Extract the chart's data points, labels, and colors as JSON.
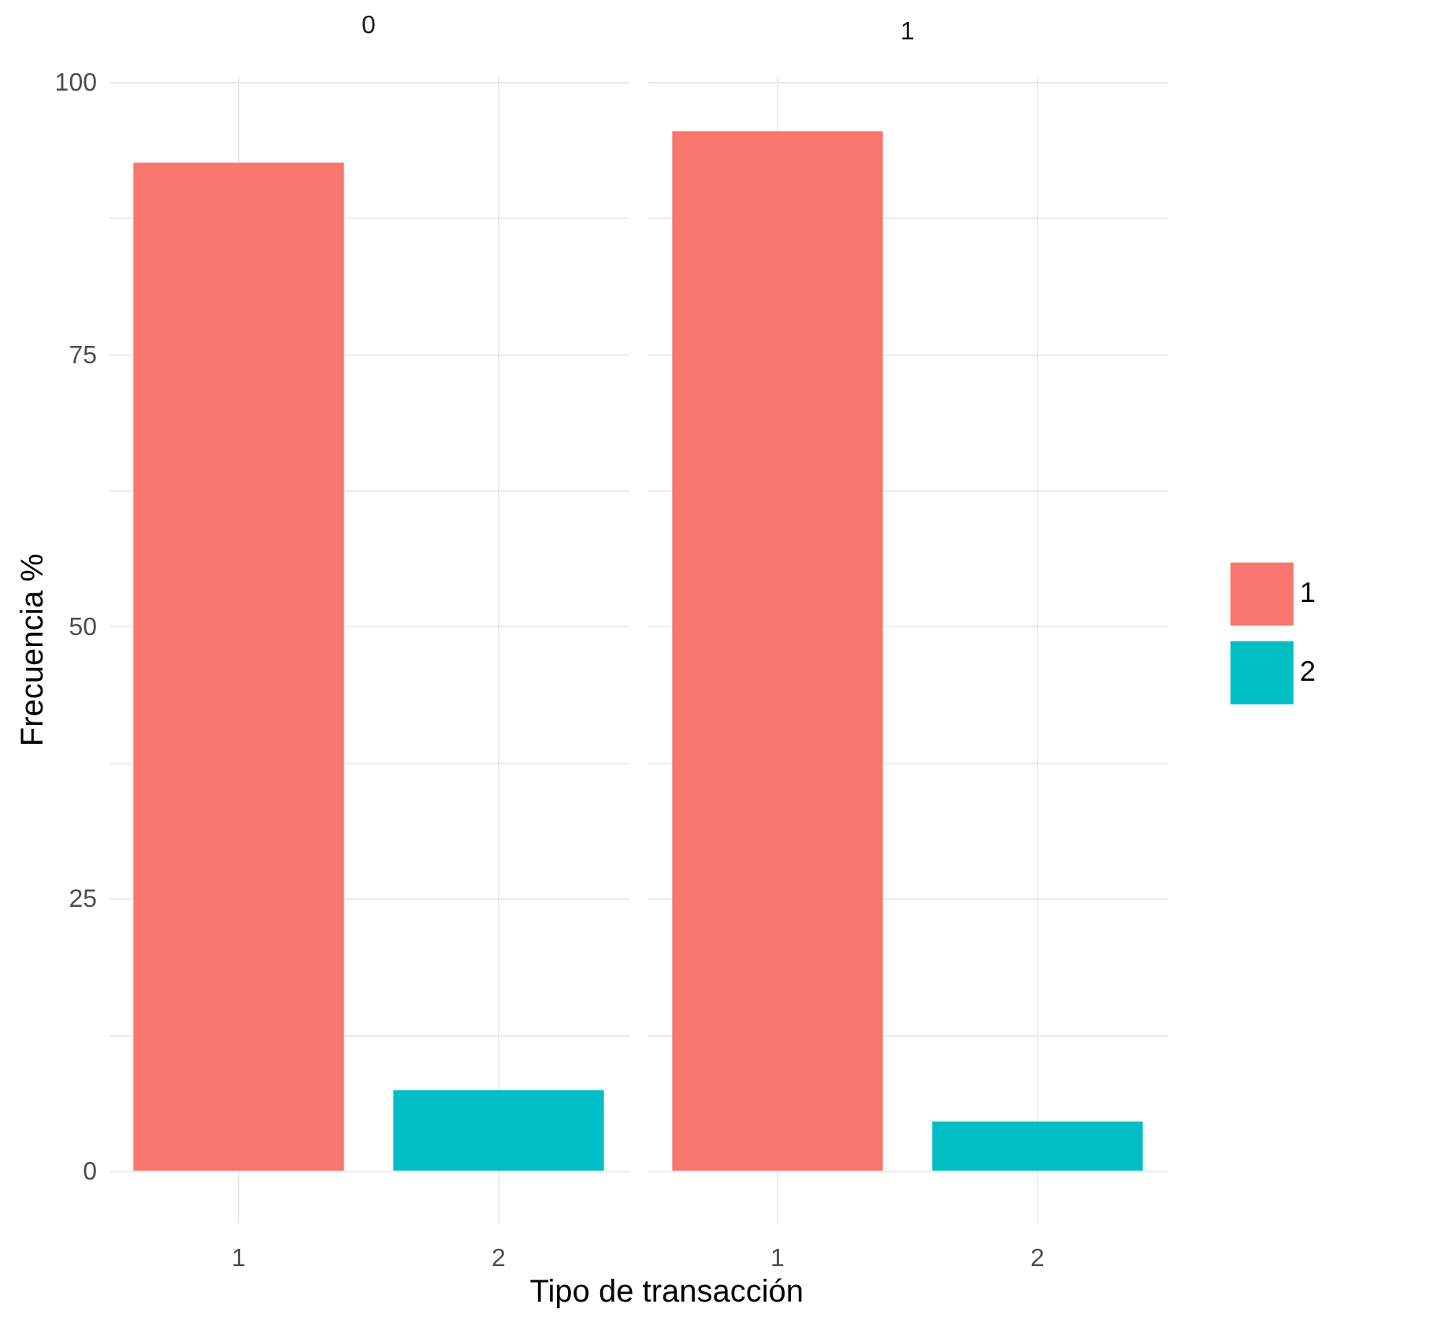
{
  "chart_data": [
    {
      "type": "bar",
      "title": "0",
      "xlabel": "Tipo de transacción",
      "ylabel": "Frecuencia %",
      "categories": [
        "1",
        "2"
      ],
      "series": [
        {
          "color": "#f8766d",
          "values": [
            92.6,
            null
          ]
        },
        {
          "color": "#00bfc4",
          "values": [
            null,
            7.4
          ]
        }
      ],
      "ylim": [
        -4.8,
        100.6
      ],
      "yticks": [
        0,
        {
          "value": 12.5,
          "label": null
        },
        25,
        {
          "value": 37.5,
          "label": null
        },
        50,
        {
          "value": 62.5,
          "label": null
        },
        75,
        {
          "value": 87.5,
          "label": null
        },
        100
      ],
      "grid": true
    },
    {
      "type": "bar",
      "title": "1",
      "categories": [
        "1",
        "2"
      ],
      "series": [
        {
          "name": "1",
          "color": "#f8766d",
          "values": [
            95.5,
            null
          ]
        },
        {
          "name": "2",
          "color": "#00bfc4",
          "values": [
            null,
            4.5
          ]
        }
      ],
      "ylim": [
        -4.8,
        100.6
      ],
      "yticks": [
        0,
        {
          "value": 12.5,
          "label": null
        },
        25,
        {
          "value": 37.5,
          "label": null
        },
        50,
        {
          "value": 62.5,
          "label": null
        },
        75,
        {
          "value": 87.5,
          "label": null
        },
        100
      ],
      "grid": true,
      "tick_labels": "x",
      "legend": "right"
    }
  ]
}
